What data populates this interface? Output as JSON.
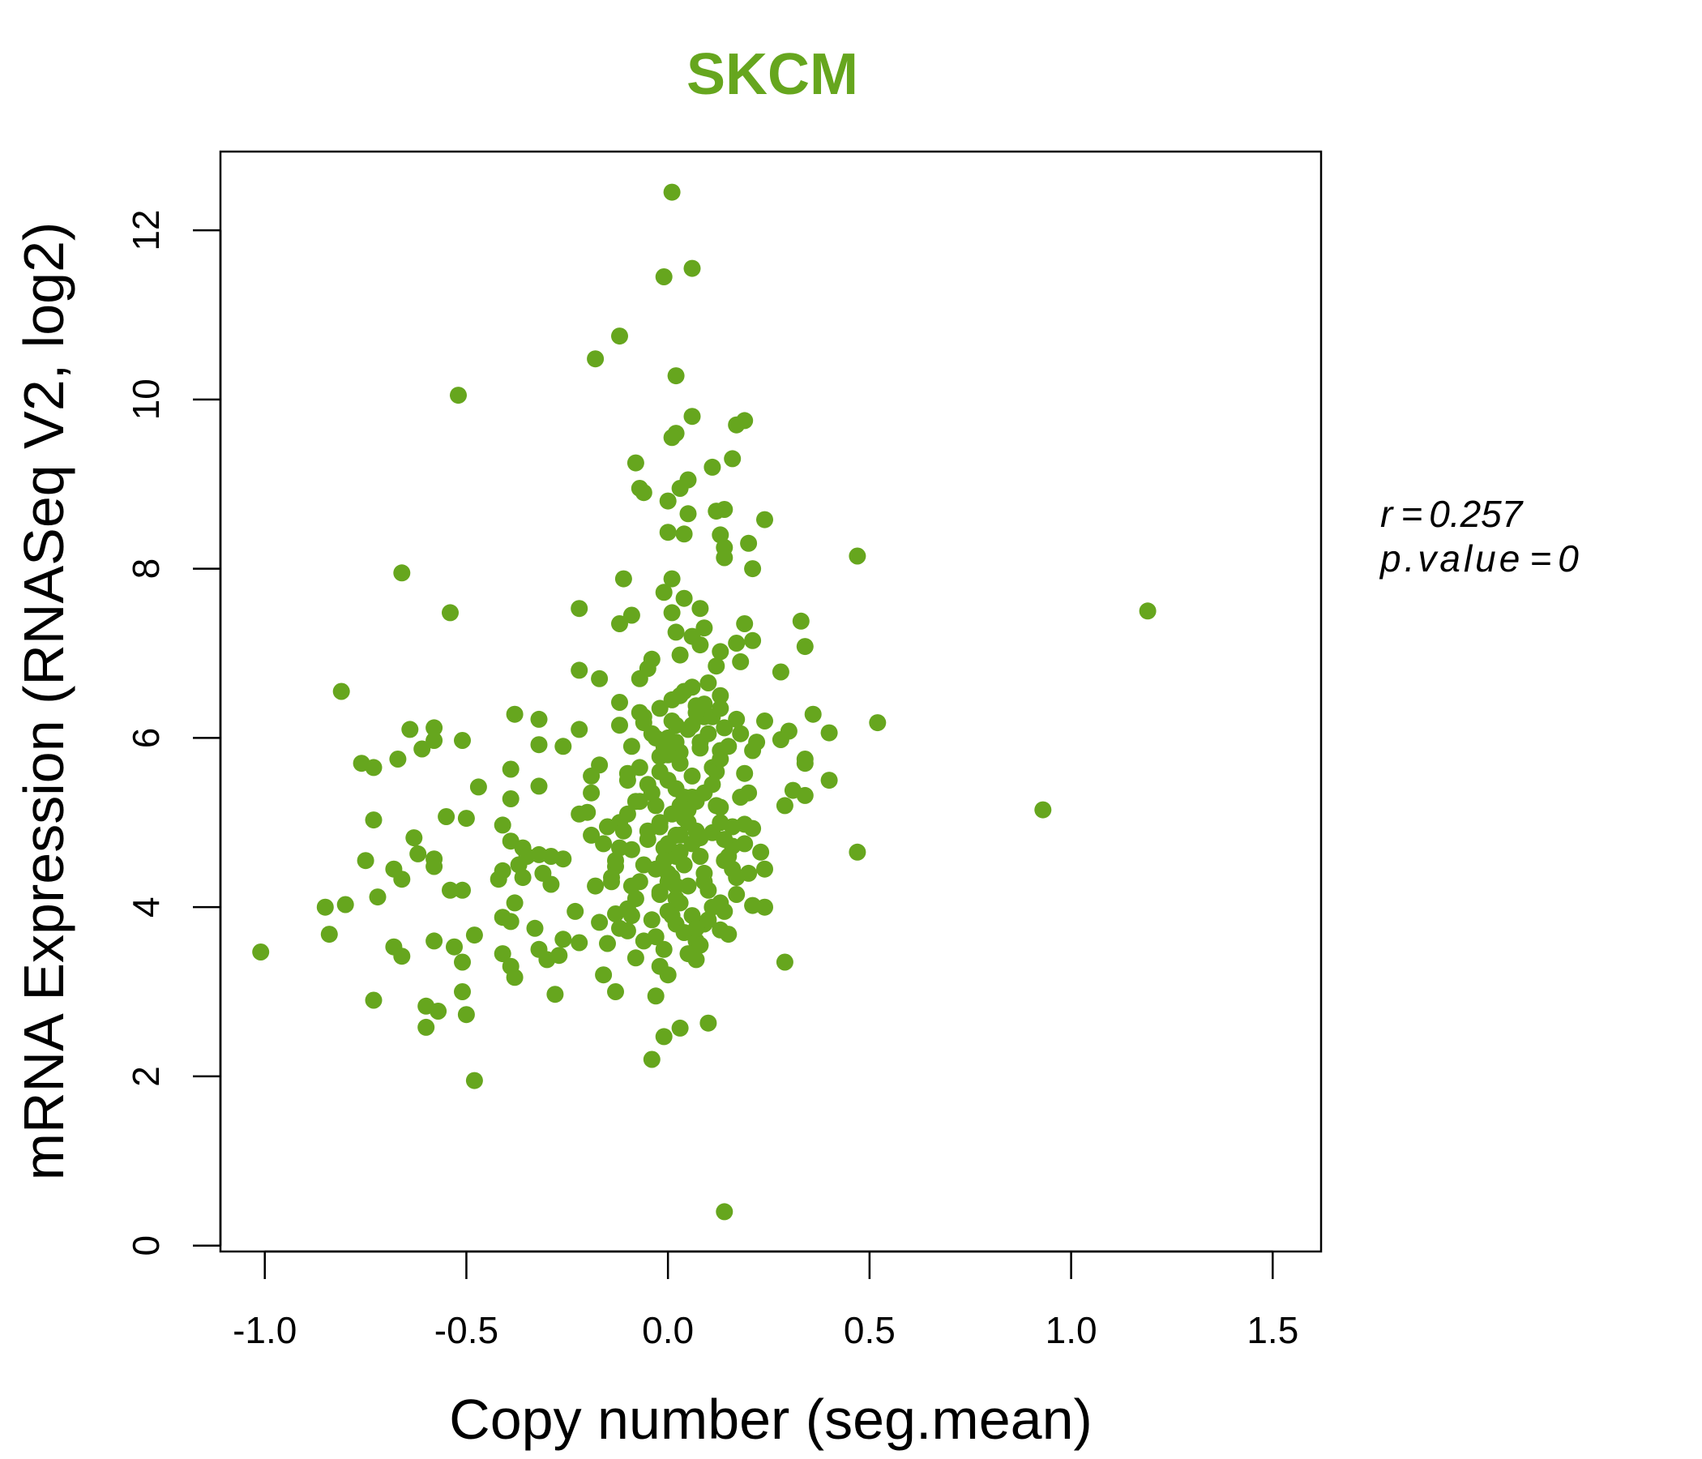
{
  "chart_data": {
    "type": "scatter",
    "title": "SKCM",
    "xlabel": "Copy number (seg.mean)",
    "ylabel": "mRNA Expression (RNASeq V2, log2)",
    "xlim": [
      -1.11,
      1.62
    ],
    "ylim": [
      -0.07,
      12.93
    ],
    "xticks": [
      -1.0,
      -0.5,
      0.0,
      0.5,
      1.0,
      1.5
    ],
    "xtick_labels": [
      "-1.0",
      "-0.5",
      "0.0",
      "0.5",
      "1.0",
      "1.5"
    ],
    "yticks": [
      0,
      2,
      4,
      6,
      8,
      10,
      12
    ],
    "ytick_labels": [
      "0",
      "2",
      "4",
      "6",
      "8",
      "10",
      "12"
    ],
    "grid": false,
    "legend": "none",
    "point_color": "#66a61e",
    "title_color": "#66a61e",
    "annotation": {
      "r_label": "r",
      "r_value": "0.257",
      "p_label": "p.value",
      "p_value": "0",
      "equals": "="
    },
    "points": [
      [
        0.01,
        12.45
      ],
      [
        0.06,
        11.55
      ],
      [
        -0.01,
        11.45
      ],
      [
        -0.12,
        10.75
      ],
      [
        -0.18,
        10.48
      ],
      [
        0.02,
        10.28
      ],
      [
        -0.52,
        10.05
      ],
      [
        0.06,
        9.8
      ],
      [
        0.19,
        9.75
      ],
      [
        0.17,
        9.7
      ],
      [
        0.02,
        9.6
      ],
      [
        0.01,
        9.55
      ],
      [
        0.16,
        9.3
      ],
      [
        -0.08,
        9.25
      ],
      [
        0.11,
        9.2
      ],
      [
        0.05,
        9.05
      ],
      [
        0.03,
        8.95
      ],
      [
        -0.07,
        8.95
      ],
      [
        -0.06,
        8.9
      ],
      [
        0.0,
        8.8
      ],
      [
        0.14,
        8.7
      ],
      [
        0.12,
        8.68
      ],
      [
        0.05,
        8.65
      ],
      [
        0.24,
        8.58
      ],
      [
        0.0,
        8.43
      ],
      [
        0.04,
        8.41
      ],
      [
        0.13,
        8.4
      ],
      [
        0.2,
        8.3
      ],
      [
        0.14,
        8.25
      ],
      [
        0.47,
        8.15
      ],
      [
        0.14,
        8.13
      ],
      [
        0.21,
        8.0
      ],
      [
        -0.66,
        7.95
      ],
      [
        0.01,
        7.88
      ],
      [
        -0.11,
        7.88
      ],
      [
        -0.01,
        7.72
      ],
      [
        0.04,
        7.65
      ],
      [
        -0.22,
        7.53
      ],
      [
        0.08,
        7.53
      ],
      [
        -0.54,
        7.48
      ],
      [
        1.19,
        7.5
      ],
      [
        0.01,
        7.48
      ],
      [
        -0.09,
        7.45
      ],
      [
        -0.12,
        7.35
      ],
      [
        0.33,
        7.38
      ],
      [
        0.19,
        7.35
      ],
      [
        0.09,
        7.3
      ],
      [
        0.02,
        7.25
      ],
      [
        0.06,
        7.2
      ],
      [
        0.21,
        7.15
      ],
      [
        0.17,
        7.12
      ],
      [
        0.08,
        7.1
      ],
      [
        0.34,
        7.08
      ],
      [
        0.13,
        7.02
      ],
      [
        0.03,
        6.98
      ],
      [
        -0.04,
        6.93
      ],
      [
        0.18,
        6.9
      ],
      [
        0.12,
        6.85
      ],
      [
        -0.05,
        6.82
      ],
      [
        -0.22,
        6.8
      ],
      [
        0.28,
        6.78
      ],
      [
        -0.17,
        6.7
      ],
      [
        -0.07,
        6.7
      ],
      [
        0.1,
        6.65
      ],
      [
        0.06,
        6.6
      ],
      [
        0.04,
        6.55
      ],
      [
        -0.81,
        6.55
      ],
      [
        0.13,
        6.5
      ],
      [
        0.01,
        6.45
      ],
      [
        -0.12,
        6.42
      ],
      [
        0.07,
        6.38
      ],
      [
        -0.07,
        6.3
      ],
      [
        -0.38,
        6.28
      ],
      [
        0.36,
        6.28
      ],
      [
        0.09,
        6.25
      ],
      [
        -0.32,
        6.22
      ],
      [
        0.17,
        6.22
      ],
      [
        0.24,
        6.2
      ],
      [
        0.52,
        6.18
      ],
      [
        -0.06,
        6.18
      ],
      [
        -0.12,
        6.15
      ],
      [
        0.02,
        6.15
      ],
      [
        0.14,
        6.12
      ],
      [
        -0.64,
        6.1
      ],
      [
        -0.58,
        6.12
      ],
      [
        -0.22,
        6.1
      ],
      [
        0.3,
        6.08
      ],
      [
        0.4,
        6.06
      ],
      [
        0.18,
        6.05
      ],
      [
        0.0,
        6.0
      ],
      [
        -0.51,
        5.97
      ],
      [
        -0.58,
        5.97
      ],
      [
        0.28,
        5.98
      ],
      [
        0.22,
        5.95
      ],
      [
        -0.32,
        5.92
      ],
      [
        -0.26,
        5.9
      ],
      [
        -0.09,
        5.9
      ],
      [
        0.08,
        5.88
      ],
      [
        -0.61,
        5.87
      ],
      [
        0.13,
        5.85
      ],
      [
        0.21,
        5.85
      ],
      [
        0.03,
        5.83
      ],
      [
        -0.02,
        5.78
      ],
      [
        -0.67,
        5.75
      ],
      [
        0.34,
        5.75
      ],
      [
        0.34,
        5.7
      ],
      [
        -0.76,
        5.7
      ],
      [
        -0.17,
        5.68
      ],
      [
        0.11,
        5.65
      ],
      [
        -0.73,
        5.65
      ],
      [
        -0.39,
        5.63
      ],
      [
        0.19,
        5.58
      ],
      [
        -0.1,
        5.58
      ],
      [
        -0.19,
        5.55
      ],
      [
        -0.1,
        5.5
      ],
      [
        0.4,
        5.5
      ],
      [
        -0.47,
        5.42
      ],
      [
        -0.32,
        5.43
      ],
      [
        0.31,
        5.38
      ],
      [
        0.2,
        5.35
      ],
      [
        -0.19,
        5.35
      ],
      [
        0.34,
        5.32
      ],
      [
        0.06,
        5.3
      ],
      [
        -0.39,
        5.28
      ],
      [
        -0.07,
        5.25
      ],
      [
        0.29,
        5.2
      ],
      [
        0.03,
        5.2
      ],
      [
        0.13,
        5.18
      ],
      [
        0.93,
        5.15
      ],
      [
        -0.2,
        5.12
      ],
      [
        -0.22,
        5.1
      ],
      [
        -0.55,
        5.07
      ],
      [
        -0.5,
        5.05
      ],
      [
        -0.73,
        5.03
      ],
      [
        -0.12,
        5.0
      ],
      [
        0.19,
        4.98
      ],
      [
        -0.41,
        4.97
      ],
      [
        0.21,
        4.93
      ],
      [
        -0.05,
        4.9
      ],
      [
        0.11,
        4.88
      ],
      [
        0.02,
        4.85
      ],
      [
        -0.19,
        4.85
      ],
      [
        0.08,
        4.82
      ],
      [
        -0.63,
        4.82
      ],
      [
        -0.39,
        4.78
      ],
      [
        -0.16,
        4.75
      ],
      [
        0.16,
        4.72
      ],
      [
        -0.36,
        4.7
      ],
      [
        -0.09,
        4.68
      ],
      [
        0.47,
        4.65
      ],
      [
        0.23,
        4.65
      ],
      [
        -0.62,
        4.63
      ],
      [
        -0.32,
        4.62
      ],
      [
        -0.35,
        4.6
      ],
      [
        -0.29,
        4.6
      ],
      [
        0.0,
        4.6
      ],
      [
        -0.26,
        4.57
      ],
      [
        -0.58,
        4.57
      ],
      [
        -0.75,
        4.55
      ],
      [
        0.14,
        4.55
      ],
      [
        -0.37,
        4.5
      ],
      [
        -0.58,
        4.48
      ],
      [
        -0.13,
        4.48
      ],
      [
        0.24,
        4.45
      ],
      [
        -0.68,
        4.45
      ],
      [
        -0.41,
        4.43
      ],
      [
        -0.31,
        4.4
      ],
      [
        0.0,
        4.4
      ],
      [
        -0.36,
        4.35
      ],
      [
        0.17,
        4.35
      ],
      [
        -0.66,
        4.33
      ],
      [
        -0.42,
        4.33
      ],
      [
        -0.14,
        4.3
      ],
      [
        0.09,
        4.3
      ],
      [
        -0.29,
        4.27
      ],
      [
        -0.18,
        4.25
      ],
      [
        -0.51,
        4.2
      ],
      [
        -0.54,
        4.2
      ],
      [
        -0.02,
        4.18
      ],
      [
        -0.72,
        4.12
      ],
      [
        -0.38,
        4.05
      ],
      [
        0.13,
        4.05
      ],
      [
        -0.8,
        4.03
      ],
      [
        0.21,
        4.02
      ],
      [
        -0.85,
        4.0
      ],
      [
        0.24,
        4.0
      ],
      [
        -0.1,
        3.98
      ],
      [
        -0.23,
        3.95
      ],
      [
        -0.13,
        3.92
      ],
      [
        -0.41,
        3.88
      ],
      [
        -0.39,
        3.83
      ],
      [
        -0.17,
        3.82
      ],
      [
        0.09,
        3.8
      ],
      [
        -0.33,
        3.75
      ],
      [
        0.13,
        3.73
      ],
      [
        -0.1,
        3.72
      ],
      [
        -0.84,
        3.68
      ],
      [
        0.15,
        3.68
      ],
      [
        -0.48,
        3.67
      ],
      [
        -0.26,
        3.62
      ],
      [
        -0.58,
        3.6
      ],
      [
        0.07,
        3.6
      ],
      [
        -0.22,
        3.58
      ],
      [
        -0.15,
        3.57
      ],
      [
        -0.68,
        3.53
      ],
      [
        -0.53,
        3.53
      ],
      [
        -0.32,
        3.5
      ],
      [
        -1.01,
        3.47
      ],
      [
        -0.41,
        3.45
      ],
      [
        -0.27,
        3.43
      ],
      [
        -0.66,
        3.42
      ],
      [
        -0.08,
        3.4
      ],
      [
        0.07,
        3.38
      ],
      [
        -0.51,
        3.35
      ],
      [
        0.29,
        3.35
      ],
      [
        -0.3,
        3.38
      ],
      [
        -0.39,
        3.3
      ],
      [
        -0.02,
        3.3
      ],
      [
        -0.38,
        3.17
      ],
      [
        -0.16,
        3.2
      ],
      [
        0.0,
        3.2
      ],
      [
        -0.51,
        3.0
      ],
      [
        -0.13,
        3.0
      ],
      [
        -0.28,
        2.97
      ],
      [
        -0.03,
        2.95
      ],
      [
        -0.73,
        2.9
      ],
      [
        -0.6,
        2.83
      ],
      [
        -0.57,
        2.77
      ],
      [
        -0.5,
        2.73
      ],
      [
        0.1,
        2.63
      ],
      [
        -0.6,
        2.58
      ],
      [
        0.03,
        2.57
      ],
      [
        -0.01,
        2.47
      ],
      [
        -0.04,
        2.2
      ],
      [
        -0.48,
        1.95
      ],
      [
        0.14,
        0.4
      ],
      [
        0.0,
        5.5
      ],
      [
        0.02,
        5.4
      ],
      [
        0.04,
        5.3
      ],
      [
        -0.03,
        5.2
      ],
      [
        0.01,
        5.1
      ],
      [
        0.05,
        5.0
      ],
      [
        -0.02,
        4.95
      ],
      [
        0.03,
        4.85
      ],
      [
        0.06,
        4.75
      ],
      [
        -0.01,
        4.7
      ],
      [
        0.02,
        4.6
      ],
      [
        0.04,
        4.5
      ],
      [
        -0.03,
        4.45
      ],
      [
        0.01,
        4.35
      ],
      [
        0.05,
        4.25
      ],
      [
        -0.02,
        4.15
      ],
      [
        0.03,
        4.05
      ],
      [
        0.0,
        3.95
      ],
      [
        0.06,
        3.9
      ],
      [
        -0.04,
        3.85
      ],
      [
        0.02,
        3.8
      ],
      [
        0.07,
        4.9
      ],
      [
        -0.05,
        4.8
      ],
      [
        0.08,
        4.6
      ],
      [
        -0.06,
        4.5
      ],
      [
        0.09,
        4.4
      ],
      [
        -0.07,
        4.3
      ],
      [
        0.1,
        4.2
      ],
      [
        -0.08,
        4.1
      ],
      [
        0.11,
        4.0
      ],
      [
        -0.09,
        3.9
      ],
      [
        0.12,
        5.2
      ],
      [
        -0.1,
        5.1
      ],
      [
        0.13,
        5.0
      ],
      [
        -0.11,
        4.9
      ],
      [
        0.14,
        4.8
      ],
      [
        -0.12,
        4.7
      ],
      [
        0.15,
        4.6
      ],
      [
        -0.13,
        4.55
      ],
      [
        0.16,
        4.45
      ],
      [
        0.0,
        5.8
      ],
      [
        0.03,
        5.7
      ],
      [
        -0.02,
        5.6
      ],
      [
        0.06,
        5.55
      ],
      [
        -0.05,
        5.45
      ],
      [
        0.09,
        5.35
      ],
      [
        -0.08,
        5.25
      ],
      [
        0.12,
        5.6
      ],
      [
        0.01,
        6.2
      ],
      [
        0.05,
        6.1
      ],
      [
        -0.03,
        6.0
      ],
      [
        0.08,
        5.95
      ],
      [
        0.1,
        6.05
      ],
      [
        -0.01,
        5.9
      ],
      [
        0.04,
        3.7
      ],
      [
        -0.03,
        3.65
      ],
      [
        0.07,
        3.75
      ],
      [
        -0.06,
        3.6
      ],
      [
        0.1,
        3.85
      ],
      [
        0.02,
        4.25
      ],
      [
        0.0,
        4.75
      ],
      [
        0.04,
        5.05
      ],
      [
        -0.04,
        5.35
      ],
      [
        0.11,
        5.45
      ],
      [
        -0.07,
        5.65
      ],
      [
        0.13,
        5.75
      ],
      [
        0.15,
        5.9
      ],
      [
        -0.09,
        4.25
      ],
      [
        0.17,
        4.15
      ],
      [
        0.18,
        5.3
      ],
      [
        -0.14,
        4.35
      ],
      [
        0.19,
        4.75
      ],
      [
        -0.15,
        4.95
      ],
      [
        0.2,
        4.4
      ],
      [
        0.07,
        6.3
      ],
      [
        -0.02,
        6.35
      ],
      [
        0.09,
        6.4
      ],
      [
        0.03,
        6.5
      ],
      [
        -0.01,
        3.5
      ],
      [
        0.05,
        3.45
      ],
      [
        0.08,
        3.55
      ],
      [
        0.14,
        3.95
      ],
      [
        -0.12,
        3.75
      ],
      [
        0.16,
        4.95
      ],
      [
        0.02,
        5.95
      ],
      [
        -0.04,
        6.05
      ],
      [
        0.06,
        6.15
      ],
      [
        0.11,
        6.25
      ],
      [
        0.13,
        6.35
      ],
      [
        -0.06,
        6.25
      ],
      [
        0.0,
        4.3
      ],
      [
        0.02,
        4.1
      ],
      [
        -0.01,
        4.55
      ],
      [
        0.03,
        4.65
      ],
      [
        0.01,
        3.9
      ],
      [
        -0.02,
        5.0
      ],
      [
        0.05,
        5.15
      ],
      [
        0.07,
        5.25
      ]
    ]
  }
}
